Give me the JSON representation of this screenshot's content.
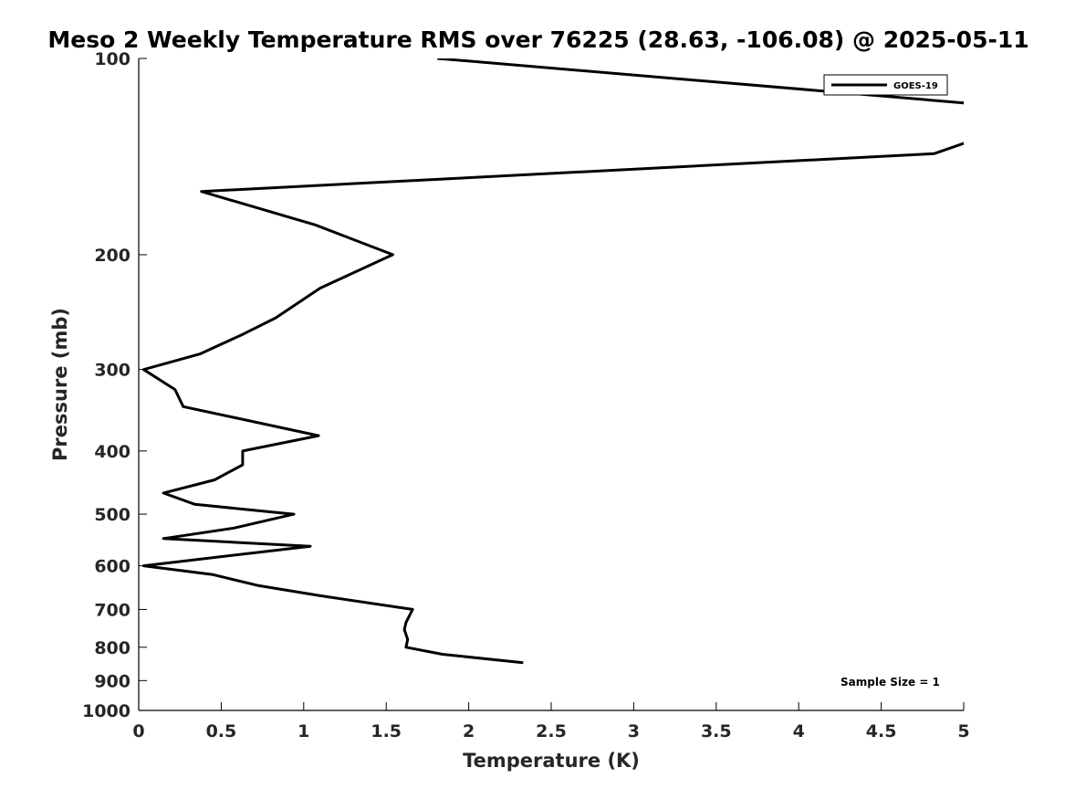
{
  "chart_data": {
    "type": "line",
    "title": "Meso 2 Weekly Temperature RMS over 76225 (28.63, -106.08) @ 2025-05-11",
    "xlabel": "Temperature (K)",
    "ylabel": "Pressure (mb)",
    "xlim": [
      0,
      5
    ],
    "ylim": [
      1000,
      100
    ],
    "yscale": "log",
    "x_ticks": [
      "0",
      "0.5",
      "1",
      "1.5",
      "2",
      "2.5",
      "3",
      "3.5",
      "4",
      "4.5",
      "5"
    ],
    "y_ticks": [
      "100",
      "200",
      "300",
      "400",
      "500",
      "600",
      "700",
      "800",
      "900",
      "1000"
    ],
    "legend_position": "top-right",
    "grid": false,
    "series": [
      {
        "name": "GOES-19",
        "color": "#000000",
        "points": [
          {
            "x": 1.81,
            "y": 100
          },
          {
            "x": 5.0,
            "y": 117
          },
          {
            "x": 6.0,
            "y": 125
          },
          {
            "x": 5.0,
            "y": 135
          },
          {
            "x": 4.82,
            "y": 140
          },
          {
            "x": 0.38,
            "y": 160
          },
          {
            "x": 1.07,
            "y": 180
          },
          {
            "x": 1.54,
            "y": 200
          },
          {
            "x": 1.1,
            "y": 225
          },
          {
            "x": 0.83,
            "y": 250
          },
          {
            "x": 0.63,
            "y": 265
          },
          {
            "x": 0.37,
            "y": 284
          },
          {
            "x": 0.03,
            "y": 300
          },
          {
            "x": 0.22,
            "y": 322
          },
          {
            "x": 0.27,
            "y": 342
          },
          {
            "x": 1.09,
            "y": 379
          },
          {
            "x": 0.63,
            "y": 400
          },
          {
            "x": 0.63,
            "y": 420
          },
          {
            "x": 0.46,
            "y": 443
          },
          {
            "x": 0.15,
            "y": 464
          },
          {
            "x": 0.34,
            "y": 483
          },
          {
            "x": 0.94,
            "y": 500
          },
          {
            "x": 0.58,
            "y": 525
          },
          {
            "x": 0.15,
            "y": 545
          },
          {
            "x": 1.04,
            "y": 560
          },
          {
            "x": 0.03,
            "y": 600
          },
          {
            "x": 0.45,
            "y": 619
          },
          {
            "x": 0.72,
            "y": 643
          },
          {
            "x": 1.1,
            "y": 667
          },
          {
            "x": 1.66,
            "y": 700
          },
          {
            "x": 1.62,
            "y": 733
          },
          {
            "x": 1.61,
            "y": 752
          },
          {
            "x": 1.63,
            "y": 778
          },
          {
            "x": 1.62,
            "y": 800
          },
          {
            "x": 1.84,
            "y": 820
          },
          {
            "x": 2.33,
            "y": 845
          }
        ]
      }
    ],
    "annotations": [
      {
        "text": "Sample Size = 1",
        "position": "bottom-right"
      }
    ]
  }
}
